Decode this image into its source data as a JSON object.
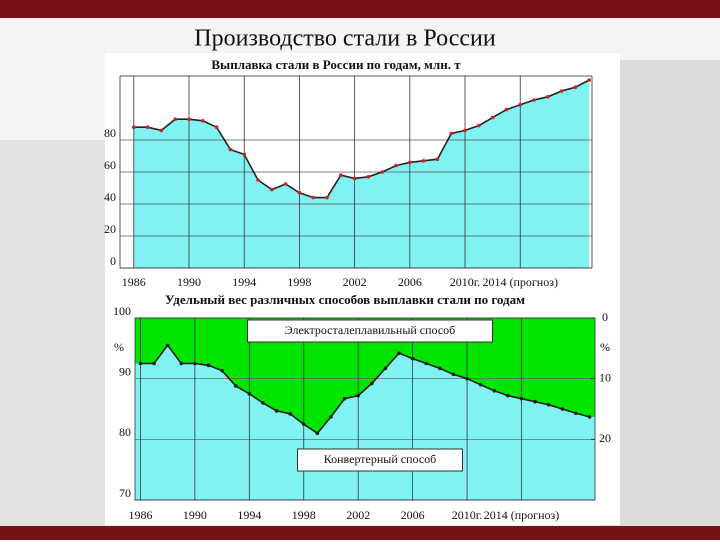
{
  "title": "Производство стали в России",
  "chart_data": [
    {
      "type": "area",
      "title": "Выплавка стали в России по годам, млн. т",
      "x": [
        1986,
        1987,
        1988,
        1989,
        1990,
        1991,
        1992,
        1993,
        1994,
        1995,
        1996,
        1997,
        1998,
        1999,
        2000,
        2001,
        2002,
        2003,
        2004,
        2005,
        2006,
        2007,
        2008,
        2009,
        2010,
        2011,
        2012,
        2013,
        2014,
        2015,
        2016,
        2017,
        2018,
        2019
      ],
      "values": [
        88,
        88,
        86,
        93,
        93,
        92,
        88,
        74,
        71,
        55,
        49,
        52.5,
        47,
        44,
        44,
        58,
        56,
        57,
        60,
        64,
        66,
        67,
        68,
        84,
        86,
        89,
        94,
        99,
        102,
        105,
        107,
        110.6,
        113,
        117.5
      ],
      "color": "#80f2f2",
      "line_color": "#222222",
      "point_color": "#cc2222",
      "xlim": [
        1985,
        2019.2
      ],
      "ylim": [
        0,
        120
      ],
      "yticks": [
        0,
        20,
        40,
        60,
        80
      ],
      "xticks": [
        1986,
        1990,
        1994,
        1998,
        2002,
        2006,
        {
          "value": 2010,
          "label": "2010г."
        },
        {
          "value": 2014,
          "label": "2014 (прогноз)"
        }
      ],
      "grid": true
    },
    {
      "type": "line",
      "title": "Удельный вес различных способов выплавки стали по годам",
      "x": [
        1986,
        1987,
        1988,
        1989,
        1990,
        1991,
        1992,
        1993,
        1994,
        1995,
        1996,
        1997,
        1998,
        1999,
        2000,
        2001,
        2002,
        2003,
        2004,
        2005,
        2006,
        2007,
        2008,
        2009,
        2010,
        2011,
        2012,
        2013,
        2014,
        2015,
        2016,
        2017,
        2018,
        2019
      ],
      "values": [
        92.5,
        92.5,
        95.5,
        92.5,
        92.5,
        92.2,
        91.3,
        88.8,
        87.5,
        86,
        84.7,
        84.2,
        82.5,
        81,
        83.7,
        86.7,
        87.2,
        89.2,
        91.7,
        94.2,
        93.3,
        92.5,
        91.7,
        90.7,
        90,
        89,
        88,
        87.2,
        86.7,
        86.2,
        85.7,
        85,
        84.3,
        83.7
      ],
      "fill_below": "#80f2f2",
      "fill_above": "#00e400",
      "line_color": "#222222",
      "xlim": [
        1985.6,
        2019.4
      ],
      "ylim": [
        70,
        100
      ],
      "y2lim": [
        30,
        0
      ],
      "yticks": [
        70,
        80,
        90,
        100
      ],
      "y2ticks": [
        0,
        10,
        20
      ],
      "y_unit": "%",
      "y2_unit": "%",
      "xticks": [
        1986,
        1990,
        1994,
        1998,
        2002,
        2006,
        {
          "value": 2010,
          "label": "2010г."
        },
        {
          "value": 2014,
          "label": "2014 (прогноз)"
        }
      ],
      "annotations": [
        "Электросталеплавильный способ",
        "Конвертерный способ"
      ],
      "grid": true
    }
  ]
}
